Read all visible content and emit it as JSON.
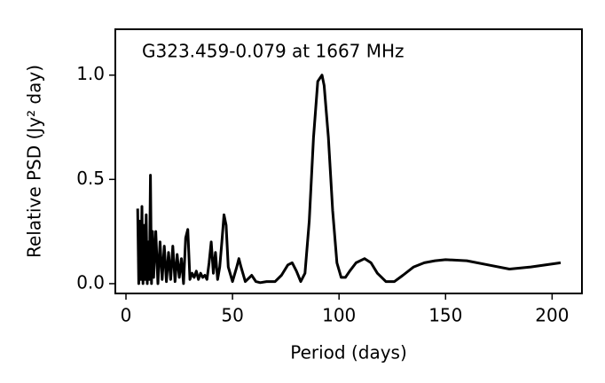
{
  "chart_data": {
    "type": "line",
    "annotation": "G323.459-0.079 at 1667 MHz",
    "xlabel": "Period (days)",
    "ylabel": "Relative PSD (Jy² day)",
    "x": [
      5.5,
      6,
      6.5,
      7,
      7.5,
      8,
      8.5,
      9,
      9.5,
      10,
      10.5,
      11,
      11.5,
      12,
      12.5,
      13,
      14,
      15,
      16,
      17,
      18,
      19,
      20,
      21,
      22,
      23,
      24,
      25,
      26,
      27,
      28,
      29,
      30,
      31,
      32,
      33,
      34,
      35,
      36,
      37,
      38,
      39,
      40,
      41,
      42,
      43,
      44,
      45,
      46,
      47,
      48,
      50,
      52,
      53,
      54,
      56,
      58,
      59,
      61,
      63,
      66,
      70,
      73,
      76,
      78,
      80,
      82,
      84,
      86,
      88,
      90,
      92,
      93,
      95,
      97,
      99,
      101,
      103,
      105,
      108,
      112,
      115,
      118,
      122,
      126,
      130,
      135,
      140,
      145,
      150,
      160,
      170,
      180,
      190,
      204
    ],
    "values": [
      0.36,
      0,
      0.3,
      0.02,
      0.37,
      0,
      0.28,
      0.02,
      0.33,
      0,
      0.2,
      0.02,
      0.52,
      0,
      0.25,
      0.03,
      0.25,
      0,
      0.2,
      0.02,
      0.18,
      0.01,
      0.15,
      0.02,
      0.18,
      0.01,
      0.14,
      0.03,
      0.12,
      0,
      0.22,
      0.26,
      0.02,
      0.05,
      0.03,
      0.06,
      0.02,
      0.05,
      0.03,
      0.04,
      0.02,
      0.1,
      0.2,
      0.05,
      0.15,
      0.02,
      0.08,
      0.2,
      0.33,
      0.28,
      0.08,
      0.01,
      0.08,
      0.12,
      0.08,
      0.01,
      0.03,
      0.04,
      0.01,
      0.005,
      0.01,
      0.01,
      0.04,
      0.09,
      0.1,
      0.06,
      0.01,
      0.05,
      0.3,
      0.7,
      0.97,
      1.0,
      0.95,
      0.7,
      0.35,
      0.1,
      0.03,
      0.03,
      0.06,
      0.1,
      0.12,
      0.1,
      0.05,
      0.01,
      0.01,
      0.04,
      0.08,
      0.1,
      0.11,
      0.115,
      0.11,
      0.09,
      0.07,
      0.08,
      0.1
    ],
    "color": "#000000",
    "xlim": [
      -5,
      214
    ],
    "xticks": [
      0,
      50,
      100,
      150,
      200
    ],
    "ylim": [
      -0.047,
      1.22
    ],
    "yticks": [
      {
        "value": 0,
        "label": "0.0"
      },
      0.5,
      {
        "value": 1,
        "label": "1.0"
      }
    ]
  }
}
